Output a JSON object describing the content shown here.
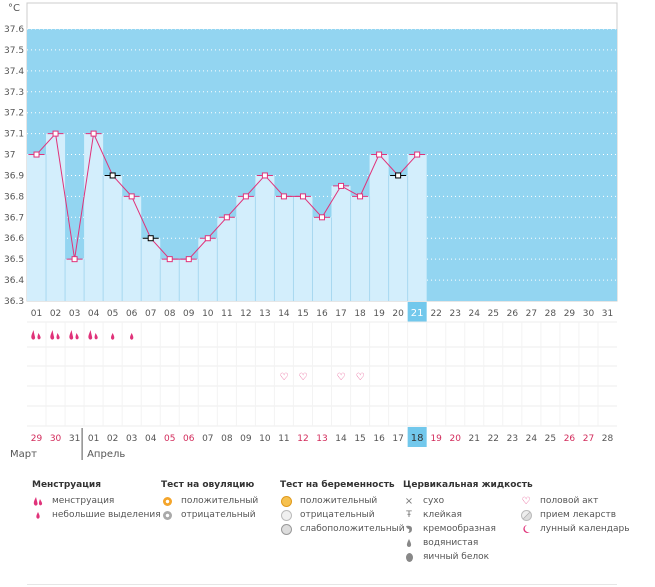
{
  "chart_data": {
    "type": "line",
    "y_unit": "°C",
    "ylim": [
      36.3,
      37.6
    ],
    "y_ticks": [
      "36.3",
      "36.4",
      "36.5",
      "36.6",
      "36.7",
      "36.8",
      "36.9",
      "37",
      "37.1",
      "37.2",
      "37.3",
      "37.4",
      "37.5",
      "37.6"
    ],
    "cycle_days": [
      "01",
      "02",
      "03",
      "04",
      "05",
      "06",
      "07",
      "08",
      "09",
      "10",
      "11",
      "12",
      "13",
      "14",
      "15",
      "16",
      "17",
      "18",
      "19",
      "20",
      "21",
      "22",
      "23",
      "24",
      "25",
      "26",
      "27",
      "28",
      "29",
      "30",
      "31"
    ],
    "temperatures": [
      37.0,
      37.1,
      36.5,
      37.1,
      36.9,
      36.8,
      36.6,
      36.5,
      36.5,
      36.6,
      36.7,
      36.8,
      36.9,
      36.8,
      36.8,
      36.7,
      36.85,
      36.8,
      37.0,
      36.9,
      37.0
    ],
    "point_markers": [
      "square",
      "square",
      "square",
      "square",
      "dash",
      "square",
      "dash",
      "square",
      "square",
      "square",
      "square",
      "square",
      "square",
      "square",
      "square",
      "square",
      "square",
      "square",
      "square",
      "dash",
      "square"
    ],
    "current_day": "21",
    "calendar_dates": [
      "29",
      "30",
      "31",
      "01",
      "02",
      "03",
      "04",
      "05",
      "06",
      "07",
      "08",
      "09",
      "10",
      "11",
      "12",
      "13",
      "14",
      "15",
      "16",
      "17",
      "18",
      "19",
      "20",
      "21",
      "22",
      "23",
      "24",
      "25",
      "26",
      "27",
      "28"
    ],
    "weekend_dates": [
      "29",
      "30",
      "05",
      "06",
      "12",
      "13",
      "19",
      "20",
      "26",
      "27"
    ],
    "today_date": "18",
    "months": [
      "Март",
      "Апрель"
    ],
    "menstruation": [
      "heavy",
      "heavy",
      "heavy",
      "heavy",
      "light",
      "light"
    ],
    "intercourse_days": [
      "14",
      "15",
      "17",
      "18"
    ],
    "colors": {
      "period_bg": "#93d5f1",
      "bar_fill": "#d3eefc",
      "line": "#e0337a",
      "today": "#72c8ec",
      "weekend_text": "#d22b5b"
    }
  },
  "legend": {
    "menstruation": {
      "title": "Менструация",
      "items": [
        "менструация",
        "небольшие выделения"
      ]
    },
    "ovulation": {
      "title": "Тест на овуляцию",
      "items": [
        "положительный",
        "отрицательный"
      ]
    },
    "pregnancy": {
      "title": "Тест на беременность",
      "items": [
        "положительный",
        "отрицательный",
        "слабоположительный"
      ]
    },
    "cervical": {
      "title": "Цервикальная жидкость",
      "items": [
        "сухо",
        "клейкая",
        "кремообразная",
        "водянистая",
        "яичный белок"
      ]
    },
    "other": {
      "items": [
        "половой акт",
        "прием лекарств",
        "лунный календарь"
      ]
    }
  }
}
